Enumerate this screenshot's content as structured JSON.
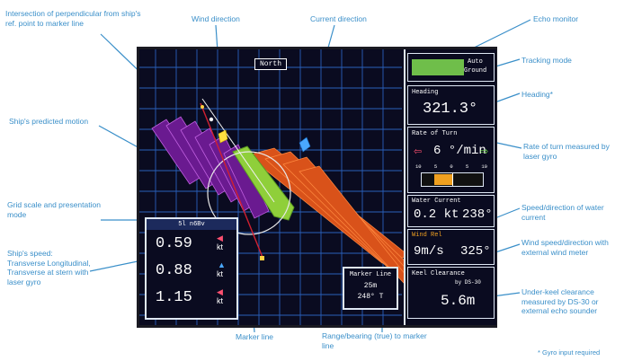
{
  "callouts": {
    "intersection": "Intersection of perpendicular from ship's ref. point to marker line",
    "wind_direction": "Wind direction",
    "current_direction": "Current direction",
    "echo_monitor": "Echo monitor",
    "tracking_mode": "Tracking mode",
    "heading": "Heading*",
    "predicted_motion": "Ship's predicted motion",
    "rate_of_turn": "Rate of turn measured by laser gyro",
    "grid_scale": "Grid scale and presentation mode",
    "speed_current": "Speed/direction of water current",
    "ship_speed": "Ship's speed: Transverse Longitudinal, Transverse at stern with laser gyro",
    "wind_speed": "Wind speed/direction with external wind meter",
    "underkeel": "Under-keel clearance measured by DS-30 or external echo sounder",
    "marker_line": "Marker line",
    "range_bearing": "Range/bearing (true) to marker line",
    "gyro_note": "* Gyro input required"
  },
  "screen": {
    "mode_badge": "North",
    "tracking_label_1": "Auto",
    "tracking_label_2": "Ground",
    "heading_title": "Heading",
    "heading_value": "321.3°",
    "rot_title": "Rate of Turn",
    "rot_value": "6 °/min",
    "rot_scale": [
      "10",
      "5",
      "0",
      "5",
      "10"
    ],
    "current_title": "Water Current",
    "current_speed": "0.2 kt",
    "current_dir": "238°",
    "wind_title": "Wind Rel",
    "wind_speed": "9m/s",
    "wind_dir": "325°",
    "keel_title": "Keel Clearance",
    "keel_source": "by DS-30",
    "keel_value": "5.6m",
    "grid_scale": "5l n6Bv",
    "speeds": [
      "0.59",
      "0.88",
      "1.15"
    ],
    "speed_unit": "kt",
    "marker_title": "Marker Line",
    "marker_range": "25m",
    "marker_bearing": "248° T"
  },
  "colors": {
    "callout": "#3a8fc9",
    "grid": "#2f6fd6",
    "predicted": "#7a1fa0",
    "ship": "#8fcf3a",
    "current_wake": "#e0561c",
    "panel_border": "#dfe8f5",
    "echo": "#6fbe4a"
  }
}
